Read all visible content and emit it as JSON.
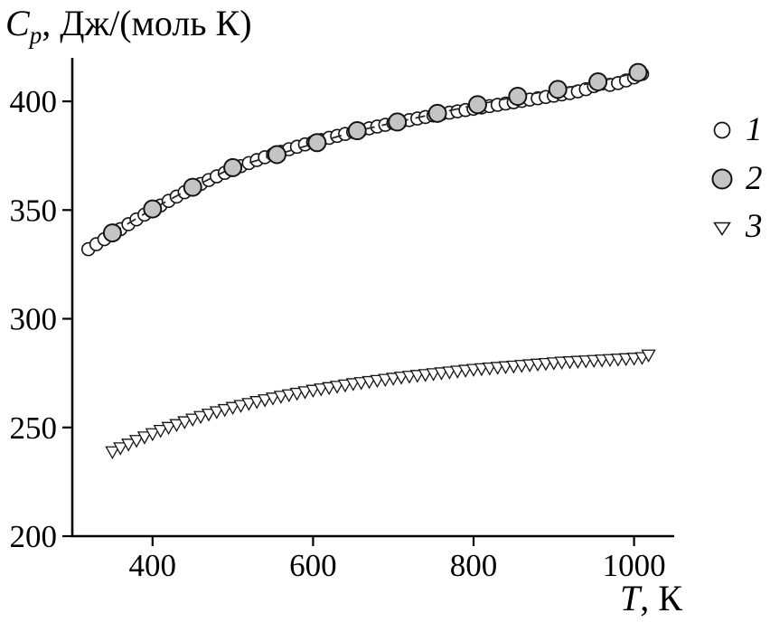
{
  "labels": {
    "y": {
      "symbol": "C",
      "sub": "p",
      "rest": ", Дж/(моль К)"
    },
    "x": {
      "symbol": "T",
      "rest": ", К"
    }
  },
  "chart_data": {
    "type": "scatter",
    "title": "",
    "ylabel": "Cp, Дж/(моль К)",
    "xlabel": "T, К",
    "xlim": [
      300,
      1050
    ],
    "ylim": [
      200,
      420
    ],
    "xticks": [
      400,
      600,
      800,
      1000
    ],
    "yticks": [
      200,
      250,
      300,
      350,
      400
    ],
    "grid": false,
    "legend_position": "right-outside",
    "colors": {
      "marker_stroke": "#141414",
      "open_fill": "#ffffff",
      "gray_fill": "#c4c4c4",
      "axis": "#000000",
      "line": "#2a2a2a"
    },
    "legend": [
      {
        "marker": "circle-open",
        "label": "1"
      },
      {
        "marker": "circle-gray",
        "label": "2"
      },
      {
        "marker": "triangle-open",
        "label": "3"
      }
    ],
    "series": [
      {
        "name": "1",
        "marker": "circle-open",
        "line": "solid",
        "x": [
          320,
          330,
          340,
          350,
          360,
          370,
          380,
          390,
          400,
          410,
          420,
          430,
          440,
          450,
          460,
          470,
          480,
          490,
          500,
          510,
          520,
          530,
          540,
          550,
          560,
          570,
          580,
          590,
          600,
          610,
          620,
          630,
          640,
          650,
          660,
          670,
          680,
          690,
          700,
          710,
          720,
          730,
          740,
          750,
          760,
          770,
          780,
          790,
          800,
          810,
          820,
          830,
          840,
          850,
          860,
          870,
          880,
          890,
          900,
          910,
          920,
          930,
          940,
          950,
          960,
          970,
          980,
          990,
          1000,
          1010
        ],
        "y": [
          332,
          334.3,
          336.6,
          338.9,
          341.2,
          343.5,
          345.7,
          347.9,
          350,
          352.1,
          354.2,
          356.2,
          358.2,
          360.1,
          362,
          363.8,
          365.5,
          367.1,
          368.7,
          370.2,
          371.6,
          373,
          374.3,
          375.6,
          376.8,
          378,
          379.1,
          380.2,
          381.2,
          382.2,
          383.2,
          384.1,
          385,
          385.9,
          386.8,
          387.6,
          388.4,
          389.2,
          390,
          390.7,
          391.4,
          392.1,
          392.8,
          393.5,
          394.2,
          394.8,
          395.4,
          396,
          396.6,
          397.2,
          397.8,
          398.4,
          399,
          399.6,
          400.2,
          400.8,
          401.4,
          402,
          402.6,
          403.2,
          403.8,
          404.6,
          405.6,
          407,
          408.2,
          407.6,
          408.4,
          409.6,
          411,
          412.6
        ]
      },
      {
        "name": "2",
        "marker": "circle-gray",
        "line": "dashed",
        "x": [
          350,
          400,
          450,
          500,
          555,
          605,
          655,
          705,
          755,
          805,
          855,
          905,
          955,
          1005
        ],
        "y": [
          339.5,
          350.5,
          360.5,
          369.5,
          375.5,
          381,
          386.5,
          390.5,
          394.5,
          398.5,
          402.3,
          405.5,
          409,
          413.3
        ]
      },
      {
        "name": "3",
        "marker": "triangle-open",
        "line": "solid",
        "x": [
          350,
          360,
          370,
          380,
          390,
          400,
          410,
          420,
          430,
          440,
          450,
          460,
          470,
          480,
          490,
          500,
          510,
          520,
          530,
          540,
          550,
          560,
          570,
          580,
          590,
          600,
          610,
          620,
          630,
          640,
          650,
          660,
          670,
          680,
          690,
          700,
          710,
          720,
          730,
          740,
          750,
          760,
          770,
          780,
          790,
          800,
          810,
          820,
          830,
          840,
          850,
          860,
          870,
          880,
          890,
          900,
          910,
          920,
          930,
          940,
          950,
          960,
          970,
          980,
          990,
          1000,
          1010,
          1018
        ],
        "y": [
          239,
          240.8,
          242.5,
          244.2,
          245.8,
          247.3,
          248.8,
          250.2,
          251.5,
          252.8,
          254,
          255.2,
          256.3,
          257.4,
          258.4,
          259.4,
          260.3,
          261.2,
          262.1,
          262.9,
          263.7,
          264.5,
          265.2,
          265.9,
          266.6,
          267.3,
          267.9,
          268.5,
          269.1,
          269.7,
          270.3,
          270.8,
          271.3,
          271.8,
          272.3,
          272.8,
          273.3,
          273.7,
          274.1,
          274.5,
          274.9,
          275.3,
          275.7,
          276.1,
          276.5,
          276.9,
          277.2,
          277.5,
          277.8,
          278.1,
          278.4,
          278.7,
          279,
          279.3,
          279.6,
          279.9,
          280.2,
          280.4,
          280.6,
          280.8,
          281,
          281.2,
          281.4,
          281.6,
          281.8,
          282,
          282.3,
          283.5
        ]
      }
    ]
  }
}
